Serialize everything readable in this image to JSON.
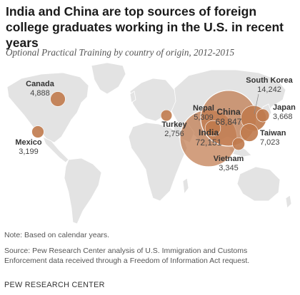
{
  "title": "India and China are top sources of foreign college graduates working in the U.S. in recent years",
  "subtitle": "Optional Practical Training by country of origin, 2012-2015",
  "colors": {
    "land": "#e3e3e3",
    "ocean": "#ffffff",
    "bubble": "#c07a4d",
    "bubble_stroke": "#ffffff"
  },
  "countries": [
    {
      "id": "india",
      "name": "India",
      "value": "72,151",
      "amount": 72151
    },
    {
      "id": "china",
      "name": "China",
      "value": "68,847",
      "amount": 68847
    },
    {
      "id": "south-korea",
      "name": "South Korea",
      "value": "14,242",
      "amount": 14242
    },
    {
      "id": "nepal",
      "name": "Nepal",
      "value": "5,309",
      "amount": 5309
    },
    {
      "id": "canada",
      "name": "Canada",
      "value": "4,888",
      "amount": 4888
    },
    {
      "id": "japan",
      "name": "Japan",
      "value": "3,668",
      "amount": 3668
    },
    {
      "id": "vietnam",
      "name": "Vietnam",
      "value": "3,345",
      "amount": 3345
    },
    {
      "id": "mexico",
      "name": "Mexico",
      "value": "3,199",
      "amount": 3199
    },
    {
      "id": "turkey",
      "name": "Turkey",
      "value": "2,756",
      "amount": 2756
    },
    {
      "id": "taiwan",
      "name": "Taiwan",
      "value": "7,023",
      "amount": 7023
    }
  ],
  "note": "Note: Based on calendar years.",
  "source_line1": "Source: Pew Research Center analysis of U.S. Immigration and Customs",
  "source_line2": "Enforcement data received through a Freedom of Information Act request.",
  "credit": "PEW RESEARCH CENTER"
}
